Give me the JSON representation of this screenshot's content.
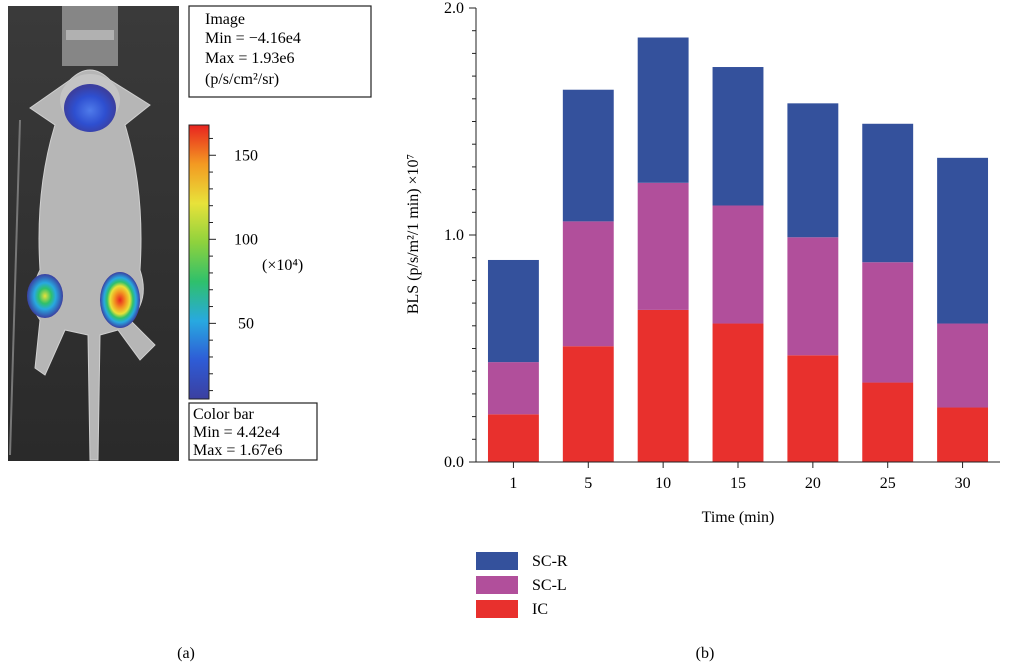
{
  "panel_a": {
    "label": "(a)",
    "image_box": {
      "line1": "Image",
      "line2": "Min = −4.16e4",
      "line3": "Max = 1.93e6",
      "line4": "(p/s/cm²/sr)"
    },
    "colorbar": {
      "ticks": [
        "150",
        "100",
        "50"
      ],
      "tick_values": [
        150,
        100,
        50
      ],
      "range": [
        5,
        168
      ],
      "unit": "(×10⁴)",
      "colors": [
        "#3b3fa0",
        "#2e5cd6",
        "#28a9e0",
        "#2fc06b",
        "#8ed23d",
        "#e8e23a",
        "#f39a22",
        "#e8231f"
      ]
    },
    "colorbar_box": {
      "line1": "Color bar",
      "line2": "Min = 4.42e4",
      "line3": "Max = 1.67e6"
    }
  },
  "panel_b": {
    "label": "(b)"
  },
  "chart_data": {
    "type": "bar",
    "stacked": true,
    "categories": [
      "1",
      "5",
      "10",
      "15",
      "20",
      "25",
      "30"
    ],
    "series": [
      {
        "name": "IC",
        "color": "#e8302d",
        "values": [
          0.21,
          0.51,
          0.67,
          0.61,
          0.47,
          0.35,
          0.24
        ]
      },
      {
        "name": "SC-L",
        "color": "#b14f9b",
        "values": [
          0.23,
          0.55,
          0.56,
          0.52,
          0.52,
          0.53,
          0.37
        ]
      },
      {
        "name": "SC-R",
        "color": "#34519c",
        "values": [
          0.45,
          0.58,
          0.64,
          0.61,
          0.59,
          0.61,
          0.73
        ]
      }
    ],
    "xlabel": "Time (min)",
    "ylabel": "BLS (p/s/m²/1 min) ×10⁷",
    "ylim": [
      0,
      2
    ],
    "yticks": [
      "0.0",
      "1.0",
      "2.0"
    ],
    "ytick_values": [
      0,
      1,
      2
    ],
    "legend_order": [
      "SC-R",
      "SC-L",
      "IC"
    ],
    "legend": "bottom-left",
    "grid": false
  }
}
